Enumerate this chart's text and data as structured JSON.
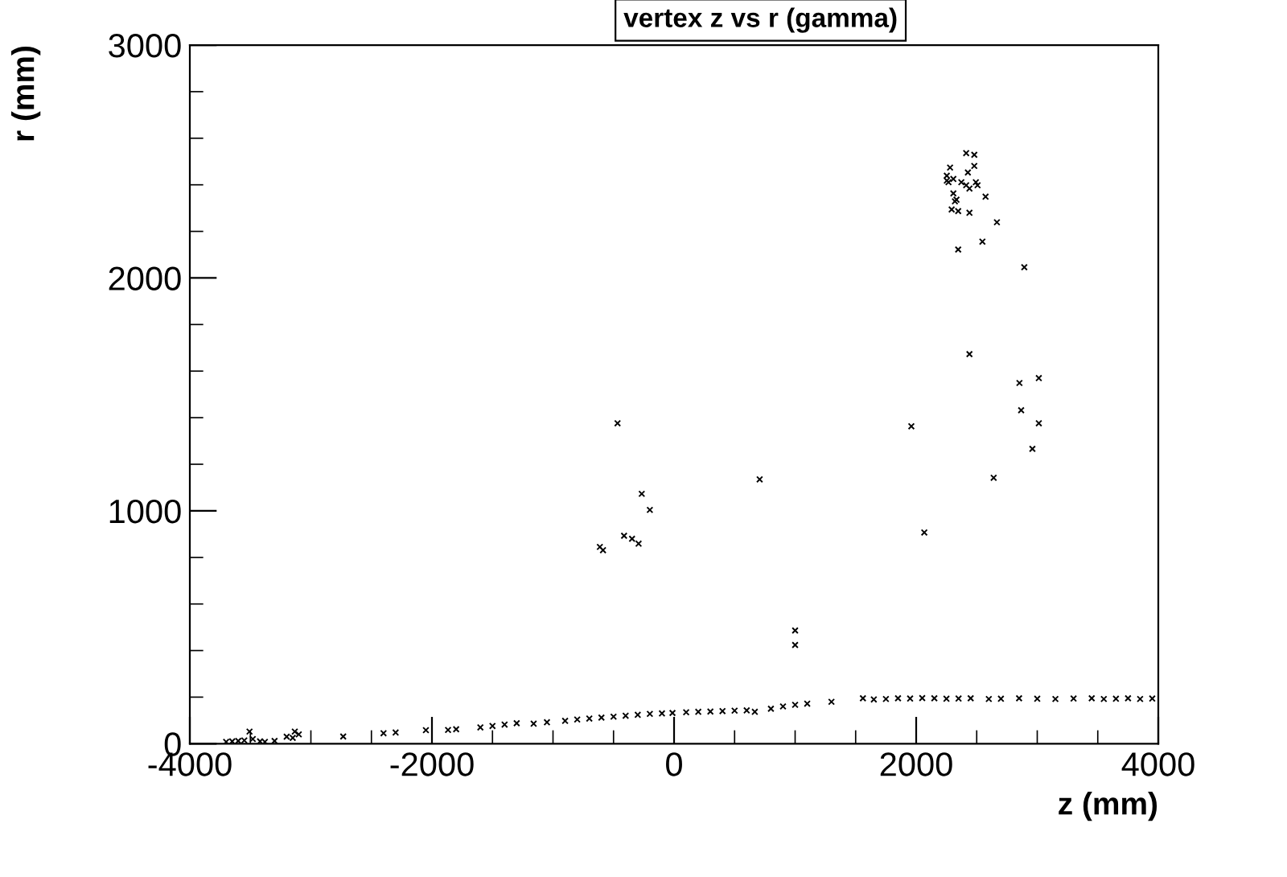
{
  "chart_data": {
    "type": "scatter",
    "title": "vertex z vs r (gamma)",
    "xlabel": "z (mm)",
    "ylabel": "r (mm)",
    "marker": "cross",
    "grid": false,
    "legend": false,
    "series": [
      {
        "color": "#000000",
        "x": [
          -467,
          -267,
          -200,
          -613,
          -587,
          -413,
          -347,
          -293,
          707,
          1000,
          1000,
          1960,
          2067,
          2867,
          3013,
          2960,
          2640,
          2853,
          3013,
          2667,
          2547,
          2347,
          2893,
          2440,
          2573,
          2440,
          2413,
          2480,
          2280,
          2427,
          2480,
          2253,
          2307,
          2493,
          2413,
          2267,
          2373,
          2307,
          2333,
          2293,
          2347,
          2440,
          2253,
          2507,
          2320,
          -3700,
          -3650,
          -3600,
          -3550,
          -3507,
          -3480,
          -3420,
          -3380,
          -3300,
          -3200,
          -3133,
          -3100,
          -3150,
          -2733,
          -2400,
          -2300,
          -2050,
          -1867,
          -1800,
          -1600,
          -1500,
          -1400,
          -1300,
          -1160,
          -1050,
          -900,
          -800,
          -700,
          -600,
          -500,
          -400,
          -300,
          -200,
          -100,
          -13,
          100,
          200,
          300,
          400,
          500,
          600,
          667,
          800,
          900,
          1000,
          1100,
          1300,
          1560,
          1650,
          1750,
          1850,
          1950,
          2050,
          2150,
          2250,
          2350,
          2450,
          2600,
          2700,
          2850,
          3000,
          3150,
          3300,
          3450,
          3550,
          3650,
          3750,
          3850,
          3950
        ],
        "values": [
          1376,
          1073,
          1004,
          845,
          831,
          893,
          880,
          859,
          1135,
          486,
          424,
          1363,
          907,
          1432,
          1376,
          1266,
          1142,
          1549,
          1570,
          2239,
          2156,
          2122,
          2046,
          1673,
          2349,
          2280,
          2536,
          2529,
          2474,
          2453,
          2481,
          2439,
          2425,
          2411,
          2398,
          2411,
          2411,
          2363,
          2336,
          2294,
          2287,
          2384,
          2418,
          2398,
          2329,
          8,
          10,
          12,
          14,
          52,
          20,
          10,
          8,
          12,
          30,
          52,
          40,
          25,
          31,
          45,
          48,
          58,
          59,
          62,
          70,
          76,
          82,
          88,
          86,
          92,
          98,
          104,
          108,
          112,
          116,
          120,
          124,
          128,
          130,
          132,
          135,
          137,
          138,
          140,
          142,
          143,
          137,
          150,
          160,
          167,
          172,
          180,
          195,
          190,
          192,
          195,
          194,
          196,
          195,
          193,
          194,
          195,
          192,
          193,
          195,
          193,
          192,
          194,
          195,
          192,
          193,
          195,
          192,
          194
        ]
      }
    ],
    "xlim": [
      -4000,
      4000
    ],
    "ylim": [
      0,
      3000
    ],
    "xticks": [
      -4000,
      -2000,
      0,
      2000,
      4000
    ],
    "yticks": [
      0,
      1000,
      2000,
      3000
    ]
  }
}
